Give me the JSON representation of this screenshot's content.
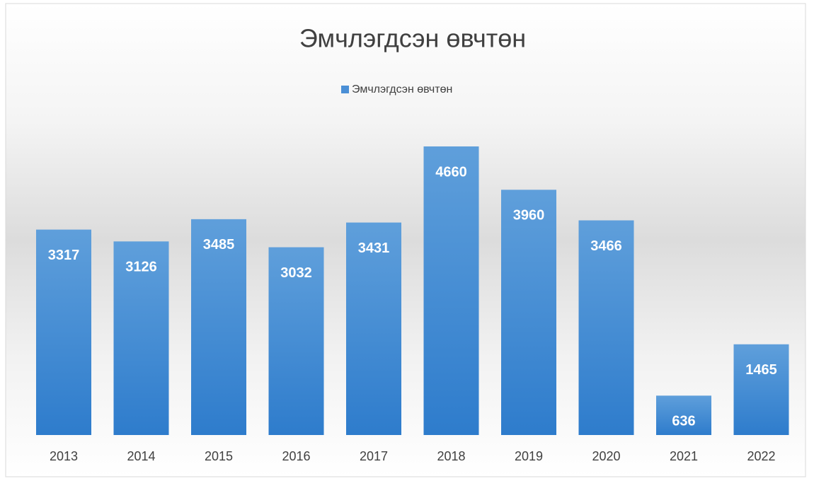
{
  "chart_data": {
    "type": "bar",
    "title": "Эмчлэгдсэн өвчтөн",
    "categories": [
      "2013",
      "2014",
      "2015",
      "2016",
      "2017",
      "2018",
      "2019",
      "2020",
      "2021",
      "2022"
    ],
    "series": [
      {
        "name": "Эмчлэгдсэн өвчтөн",
        "color": "#4a8fd6",
        "values": [
          3317,
          3126,
          3485,
          3032,
          3431,
          4660,
          3960,
          3466,
          636,
          1465
        ]
      }
    ],
    "legend": "top"
  }
}
